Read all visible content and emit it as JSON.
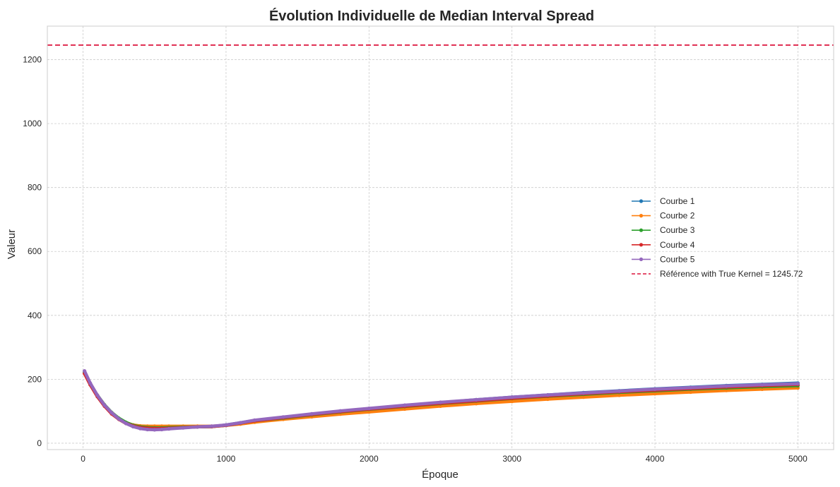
{
  "chart_data": {
    "type": "line",
    "title": "Évolution Individuelle de Median Interval Spread",
    "xlabel": "Époque",
    "ylabel": "Valeur",
    "xlim": [
      -250,
      5250
    ],
    "ylim": [
      -20,
      1305
    ],
    "xticks": [
      0,
      1000,
      2000,
      3000,
      4000,
      5000
    ],
    "yticks": [
      0,
      200,
      400,
      600,
      800,
      1000,
      1200
    ],
    "grid": true,
    "legend_position": "center-right",
    "x": [
      10,
      50,
      100,
      150,
      200,
      250,
      300,
      350,
      400,
      450,
      500,
      550,
      600,
      700,
      800,
      900,
      1000,
      1100,
      1200,
      1400,
      1600,
      1800,
      2000,
      2250,
      2500,
      2750,
      3000,
      3250,
      3500,
      3750,
      4000,
      4250,
      4500,
      4750,
      5000
    ],
    "series": [
      {
        "name": "Courbe 1",
        "color": "#1f77b4",
        "values": [
          222,
          185,
          148,
          118,
          94,
          76,
          63,
          54,
          49,
          47,
          46,
          46,
          47,
          49,
          51,
          52,
          57,
          64,
          71,
          81,
          91,
          100,
          108,
          118,
          127,
          136,
          144,
          151,
          158,
          164,
          170,
          175,
          180,
          184,
          188
        ]
      },
      {
        "name": "Courbe 2",
        "color": "#ff7f0e",
        "values": [
          220,
          184,
          147,
          117,
          93,
          76,
          64,
          57,
          54,
          53,
          53,
          53,
          53,
          53,
          53,
          53,
          56,
          60,
          66,
          75,
          83,
          91,
          98,
          107,
          116,
          124,
          131,
          138,
          144,
          150,
          155,
          160,
          165,
          169,
          173
        ]
      },
      {
        "name": "Courbe 3",
        "color": "#2ca02c",
        "values": [
          221,
          186,
          150,
          120,
          96,
          78,
          65,
          56,
          51,
          49,
          48,
          48,
          49,
          50,
          51,
          52,
          56,
          63,
          70,
          79,
          89,
          98,
          106,
          115,
          124,
          132,
          140,
          147,
          153,
          159,
          164,
          169,
          173,
          177,
          180
        ]
      },
      {
        "name": "Courbe 4",
        "color": "#d62728",
        "values": [
          218,
          183,
          146,
          116,
          92,
          75,
          62,
          54,
          49,
          47,
          46,
          46,
          47,
          49,
          51,
          52,
          56,
          63,
          70,
          80,
          90,
          99,
          107,
          116,
          125,
          133,
          141,
          148,
          155,
          161,
          166,
          171,
          176,
          180,
          184
        ]
      },
      {
        "name": "Courbe 5",
        "color": "#9467bd",
        "values": [
          226,
          188,
          150,
          119,
          95,
          76,
          62,
          52,
          46,
          43,
          42,
          43,
          45,
          48,
          51,
          53,
          57,
          64,
          72,
          82,
          92,
          101,
          109,
          119,
          128,
          136,
          144,
          151,
          157,
          163,
          169,
          174,
          179,
          183,
          186
        ]
      }
    ],
    "reference": {
      "name": "Référence with True Kernel = 1245.72",
      "value": 1245.72,
      "color": "#dc143c"
    }
  }
}
